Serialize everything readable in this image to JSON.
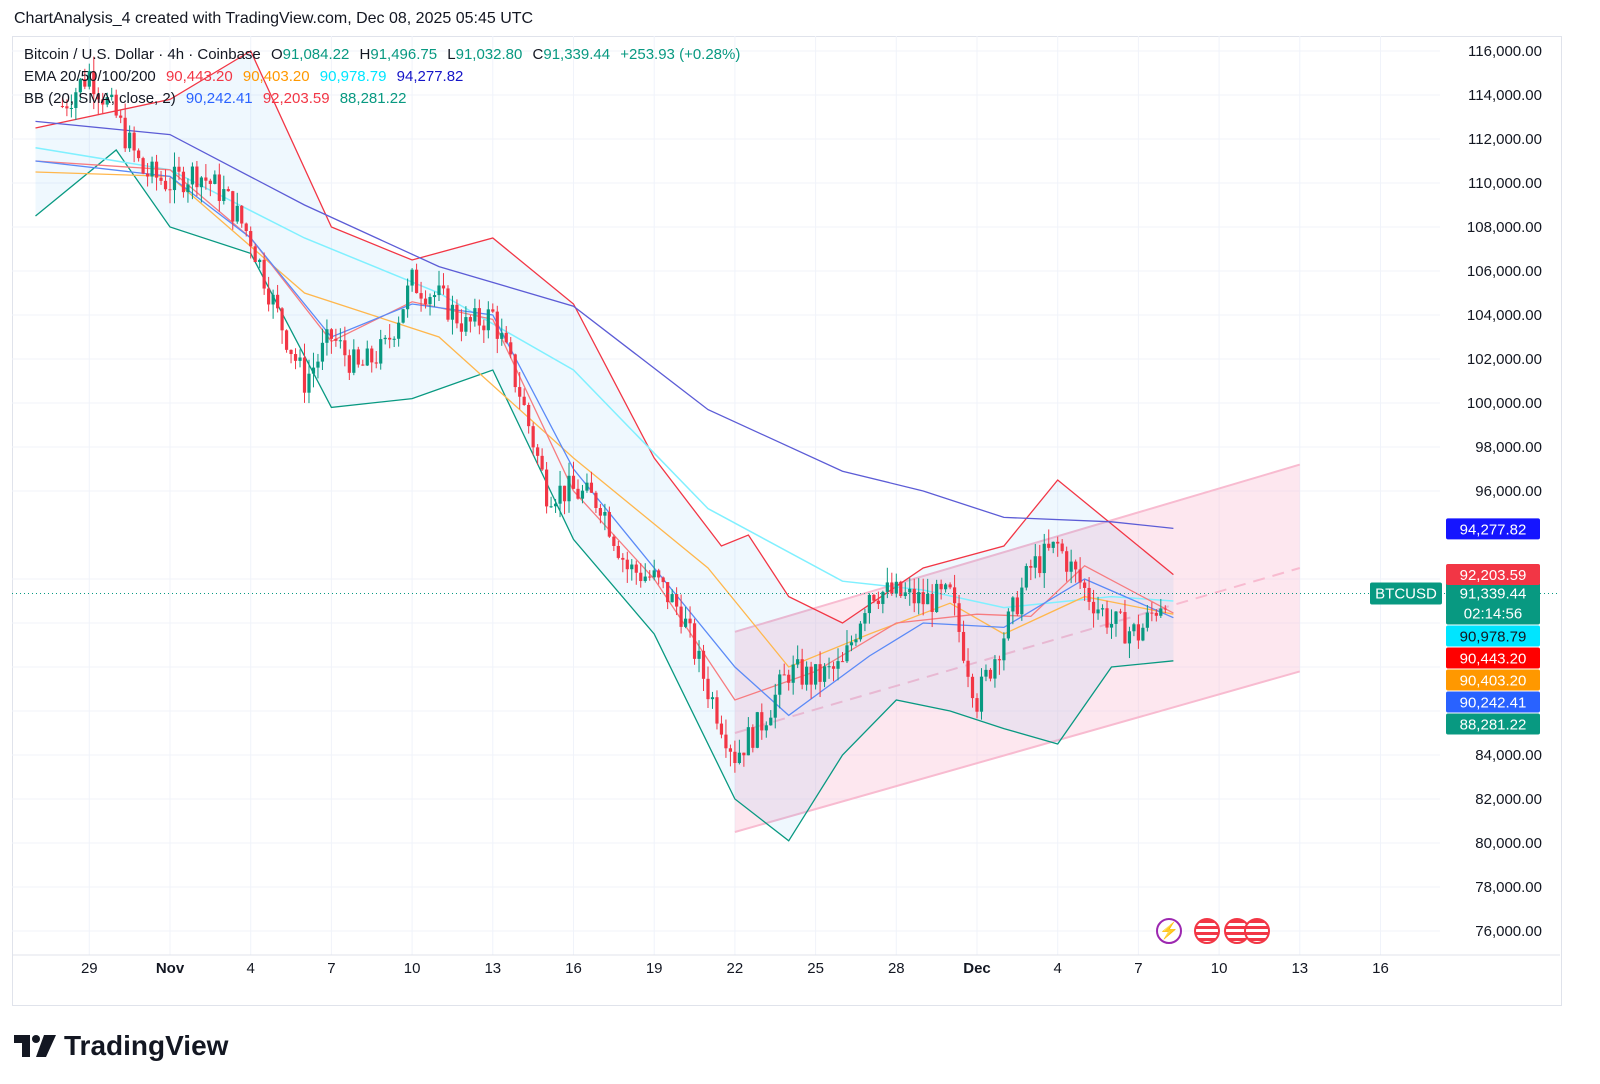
{
  "header": {
    "title": "ChartAnalysis_4 created with TradingView.com, Dec 08, 2025 05:45 UTC"
  },
  "legend": {
    "symbol": "Bitcoin / U.S. Dollar · 4h · Coinbase",
    "ohlc": {
      "o_label": "O",
      "o": "91,084.22",
      "h_label": "H",
      "h": "91,496.75",
      "l_label": "L",
      "l": "91,032.80",
      "c_label": "C",
      "c": "91,339.44",
      "change": "+253.93 (+0.28%)"
    },
    "ema": {
      "label": "EMA 20/50/100/200",
      "v20": "90,443.20",
      "v50": "90,403.20",
      "v100": "90,978.79",
      "v200": "94,277.82"
    },
    "bb": {
      "label": "BB (20, SMA, close, 2)",
      "mid": "90,242.41",
      "upper": "92,203.59",
      "lower": "88,281.22"
    }
  },
  "colors": {
    "up": "#089981",
    "down": "#f23645",
    "ema20": "#f23645",
    "ema50": "#ff9800",
    "ema100": "#00e5ff",
    "ema200": "#2962ff",
    "bb_mid": "#2962ff",
    "bb_upper": "#f23645",
    "bb_lower": "#089981",
    "channel": "#f8bbd0"
  },
  "branding": {
    "logo_text": "TradingView"
  },
  "chart_data": {
    "type": "candlestick",
    "symbol": "BTCUSD",
    "timeframe": "4h",
    "y_axis": {
      "min": 75000,
      "max": 117000,
      "ticks": [
        "116,000.00",
        "114,000.00",
        "112,000.00",
        "110,000.00",
        "108,000.00",
        "106,000.00",
        "104,000.00",
        "102,000.00",
        "100,000.00",
        "98,000.00",
        "96,000.00",
        "84,000.00",
        "82,000.00",
        "80,000.00",
        "78,000.00",
        "76,000.00"
      ],
      "tick_values": [
        116000,
        114000,
        112000,
        110000,
        108000,
        106000,
        104000,
        102000,
        100000,
        98000,
        96000,
        84000,
        82000,
        80000,
        78000,
        76000
      ]
    },
    "x_axis": {
      "labels": [
        "29",
        "Nov",
        "4",
        "7",
        "10",
        "13",
        "16",
        "19",
        "22",
        "25",
        "28",
        "Dec",
        "4",
        "7",
        "10",
        "13",
        "16"
      ],
      "day_index": [
        -3,
        0,
        3,
        6,
        9,
        12,
        15,
        18,
        21,
        24,
        27,
        30,
        33,
        36,
        39,
        42,
        45
      ]
    },
    "last_price": {
      "label": "BTCUSD",
      "value": 91339.44,
      "value_text": "91,339.44",
      "countdown": "02:14:56"
    },
    "price_tags": [
      {
        "name": "ema200",
        "value": 94277.82,
        "text": "94,277.82",
        "color": "#1515ff"
      },
      {
        "name": "bb_upper",
        "value": 92203.59,
        "text": "92,203.59",
        "color": "#f23645"
      },
      {
        "name": "ema100",
        "value": 90978.79,
        "text": "90,978.79",
        "color": "#00e5ff"
      },
      {
        "name": "ema20",
        "value": 90443.2,
        "text": "90,443.20",
        "color": "#ff0000"
      },
      {
        "name": "ema50",
        "value": 90403.2,
        "text": "90,403.20",
        "color": "#ff9800"
      },
      {
        "name": "bb_mid",
        "value": 90242.41,
        "text": "90,242.41",
        "color": "#2962ff"
      },
      {
        "name": "bb_lower",
        "value": 88281.22,
        "text": "88,281.22",
        "color": "#089981"
      }
    ],
    "close_path": [
      [
        -4,
        113500
      ],
      [
        -3,
        115000
      ],
      [
        -2,
        113000
      ],
      [
        -1,
        110500
      ],
      [
        0,
        110000
      ],
      [
        1,
        110500
      ],
      [
        2,
        109500
      ],
      [
        3,
        107500
      ],
      [
        4,
        104000
      ],
      [
        5,
        101000
      ],
      [
        6,
        103000
      ],
      [
        7,
        101500
      ],
      [
        8,
        102500
      ],
      [
        9,
        105500
      ],
      [
        10,
        104800
      ],
      [
        11,
        103500
      ],
      [
        12,
        104000
      ],
      [
        13,
        100500
      ],
      [
        14,
        96000
      ],
      [
        15,
        96000
      ],
      [
        16,
        95500
      ],
      [
        17,
        92500
      ],
      [
        18,
        92000
      ],
      [
        19,
        90500
      ],
      [
        20,
        87000
      ],
      [
        21,
        84000
      ],
      [
        22,
        85500
      ],
      [
        23,
        87800
      ],
      [
        24,
        87500
      ],
      [
        25,
        88000
      ],
      [
        26,
        91500
      ],
      [
        27,
        91300
      ],
      [
        28,
        91000
      ],
      [
        29,
        91200
      ],
      [
        30,
        86500
      ],
      [
        31,
        89500
      ],
      [
        32,
        92500
      ],
      [
        33,
        93500
      ],
      [
        34,
        91500
      ],
      [
        35,
        90000
      ],
      [
        36,
        89500
      ],
      [
        37,
        91300
      ]
    ],
    "ema200_path": [
      [
        -5,
        112800
      ],
      [
        0,
        112200
      ],
      [
        5,
        109000
      ],
      [
        10,
        106200
      ],
      [
        15,
        104400
      ],
      [
        20,
        99700
      ],
      [
        25,
        96900
      ],
      [
        28,
        96000
      ],
      [
        31,
        94800
      ],
      [
        35,
        94600
      ],
      [
        37.3,
        94300
      ]
    ],
    "ema100_path": [
      [
        -5,
        111600
      ],
      [
        0,
        110600
      ],
      [
        5,
        107500
      ],
      [
        10,
        105000
      ],
      [
        15,
        101500
      ],
      [
        20,
        95200
      ],
      [
        25,
        91900
      ],
      [
        28,
        91500
      ],
      [
        31,
        90700
      ],
      [
        35,
        91200
      ],
      [
        37.3,
        91000
      ]
    ],
    "ema50_path": [
      [
        -5,
        110500
      ],
      [
        0,
        110300
      ],
      [
        5,
        105000
      ],
      [
        10,
        103000
      ],
      [
        15,
        97500
      ],
      [
        20,
        92500
      ],
      [
        23,
        88000
      ],
      [
        26,
        89500
      ],
      [
        29,
        90900
      ],
      [
        31,
        89500
      ],
      [
        34,
        91200
      ],
      [
        37.3,
        90400
      ]
    ],
    "ema20_path": [
      [
        -5,
        111000
      ],
      [
        0,
        110600
      ],
      [
        3,
        107500
      ],
      [
        6,
        102800
      ],
      [
        9,
        104600
      ],
      [
        12,
        103800
      ],
      [
        15,
        96000
      ],
      [
        18,
        92000
      ],
      [
        21,
        86500
      ],
      [
        24,
        87800
      ],
      [
        27,
        90000
      ],
      [
        30,
        90400
      ],
      [
        32,
        90300
      ],
      [
        34,
        92600
      ],
      [
        37.3,
        90450
      ]
    ],
    "bb_upper_path": [
      [
        -5,
        112500
      ],
      [
        0,
        113800
      ],
      [
        3,
        116000
      ],
      [
        6,
        108000
      ],
      [
        9,
        106500
      ],
      [
        12,
        107500
      ],
      [
        15,
        104500
      ],
      [
        18,
        97500
      ],
      [
        20.5,
        93500
      ],
      [
        21.5,
        94000
      ],
      [
        23,
        91200
      ],
      [
        25,
        90000
      ],
      [
        28,
        92500
      ],
      [
        31,
        93500
      ],
      [
        33,
        96500
      ],
      [
        35,
        94500
      ],
      [
        37.3,
        92200
      ]
    ],
    "bb_mid_path": [
      [
        -5,
        111000
      ],
      [
        0,
        110300
      ],
      [
        3,
        107500
      ],
      [
        6,
        103000
      ],
      [
        9,
        104500
      ],
      [
        12,
        104000
      ],
      [
        15,
        97000
      ],
      [
        18,
        92500
      ],
      [
        21,
        88000
      ],
      [
        23,
        85800
      ],
      [
        26,
        88500
      ],
      [
        28,
        90000
      ],
      [
        31,
        89800
      ],
      [
        34,
        92000
      ],
      [
        37.3,
        90240
      ]
    ],
    "bb_lower_path": [
      [
        -5,
        108500
      ],
      [
        -2,
        111500
      ],
      [
        0,
        108000
      ],
      [
        3,
        106800
      ],
      [
        6,
        99800
      ],
      [
        9,
        100200
      ],
      [
        12,
        101500
      ],
      [
        15,
        93800
      ],
      [
        18,
        89500
      ],
      [
        21,
        82000
      ],
      [
        23,
        80100
      ],
      [
        25,
        84000
      ],
      [
        27,
        86500
      ],
      [
        29,
        86000
      ],
      [
        31,
        85200
      ],
      [
        33,
        84500
      ],
      [
        35,
        88000
      ],
      [
        37.3,
        88280
      ]
    ],
    "channel": {
      "upper": [
        [
          21,
          89600
        ],
        [
          42,
          97200
        ]
      ],
      "lower": [
        [
          21,
          80500
        ],
        [
          42,
          87800
        ]
      ],
      "mid": [
        [
          21,
          85000
        ],
        [
          42,
          92500
        ]
      ]
    }
  }
}
